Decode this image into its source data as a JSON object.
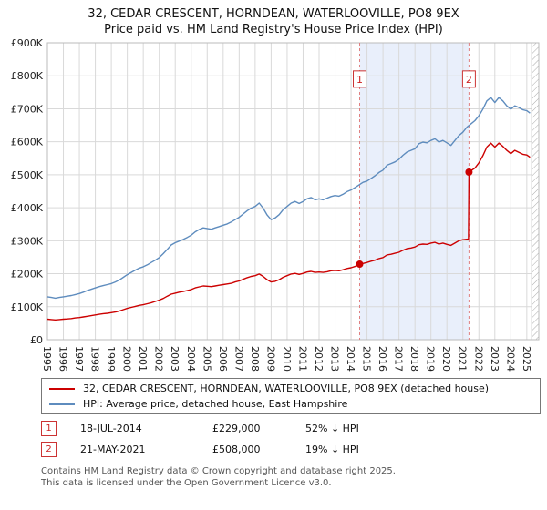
{
  "title": {
    "line1": "32, CEDAR CRESCENT, HORNDEAN, WATERLOOVILLE, PO8 9EX",
    "line2": "Price paid vs. HM Land Registry's House Price Index (HPI)"
  },
  "chart_data": {
    "type": "line",
    "title": "32, CEDAR CRESCENT, HORNDEAN, WATERLOOVILLE, PO8 9EX — Price paid vs. HM Land Registry's House Price Index (HPI)",
    "unit": "GBP thousands",
    "xlim": [
      1995,
      2025.75
    ],
    "ylim": [
      0,
      900
    ],
    "grid": true,
    "x_ticks": [
      [
        1995,
        "1995"
      ],
      [
        1996,
        "1996"
      ],
      [
        1997,
        "1997"
      ],
      [
        1998,
        "1998"
      ],
      [
        1999,
        "1999"
      ],
      [
        2000,
        "2000"
      ],
      [
        2001,
        "2001"
      ],
      [
        2002,
        "2002"
      ],
      [
        2003,
        "2003"
      ],
      [
        2004,
        "2004"
      ],
      [
        2005,
        "2005"
      ],
      [
        2006,
        "2006"
      ],
      [
        2007,
        "2007"
      ],
      [
        2008,
        "2008"
      ],
      [
        2009,
        "2009"
      ],
      [
        2010,
        "2010"
      ],
      [
        2011,
        "2011"
      ],
      [
        2012,
        "2012"
      ],
      [
        2013,
        "2013"
      ],
      [
        2014,
        "2014"
      ],
      [
        2015,
        "2015"
      ],
      [
        2016,
        "2016"
      ],
      [
        2017,
        "2017"
      ],
      [
        2018,
        "2018"
      ],
      [
        2019,
        "2019"
      ],
      [
        2020,
        "2020"
      ],
      [
        2021,
        "2021"
      ],
      [
        2022,
        "2022"
      ],
      [
        2023,
        "2023"
      ],
      [
        2024,
        "2024"
      ],
      [
        2025,
        "2025"
      ]
    ],
    "y_ticks": [
      [
        0,
        "£0"
      ],
      [
        100,
        "£100K"
      ],
      [
        200,
        "£200K"
      ],
      [
        300,
        "£300K"
      ],
      [
        400,
        "£400K"
      ],
      [
        500,
        "£500K"
      ],
      [
        600,
        "£600K"
      ],
      [
        700,
        "£700K"
      ],
      [
        800,
        "£800K"
      ],
      [
        900,
        "£900K"
      ]
    ],
    "shaded_region": {
      "from": 2014.54,
      "to": 2021.38,
      "color": "#e9effb"
    },
    "hatch_region": {
      "from": 2025.3,
      "to": 2025.75
    },
    "marker_label_y": 790,
    "sale_line_color": "#e08080",
    "sales": [
      {
        "label": "1",
        "x": 2014.54,
        "y": 229,
        "date": "18-JUL-2014",
        "price": "£229,000",
        "vs_hpi": "52% ↓ HPI"
      },
      {
        "label": "2",
        "x": 2021.38,
        "y": 508,
        "date": "21-MAY-2021",
        "price": "£508,000",
        "vs_hpi": "19% ↓ HPI"
      }
    ],
    "series": [
      {
        "name": "32, CEDAR CRESCENT, HORNDEAN, WATERLOOVILLE, PO8 9EX (detached house)",
        "color": "#cc0000",
        "points": [
          [
            1995,
            62
          ],
          [
            1995.25,
            61
          ],
          [
            1995.5,
            60
          ],
          [
            1995.75,
            61
          ],
          [
            1996,
            62
          ],
          [
            1996.25,
            63
          ],
          [
            1996.5,
            64
          ],
          [
            1996.75,
            66
          ],
          [
            1997,
            67
          ],
          [
            1997.25,
            69
          ],
          [
            1997.5,
            71
          ],
          [
            1997.75,
            73
          ],
          [
            1998,
            75
          ],
          [
            1998.25,
            77
          ],
          [
            1998.5,
            79
          ],
          [
            1998.75,
            80
          ],
          [
            1999,
            82
          ],
          [
            1999.25,
            84
          ],
          [
            1999.5,
            87
          ],
          [
            1999.75,
            91
          ],
          [
            2000,
            95
          ],
          [
            2000.25,
            98
          ],
          [
            2000.5,
            101
          ],
          [
            2000.75,
            104
          ],
          [
            2001,
            106
          ],
          [
            2001.25,
            109
          ],
          [
            2001.5,
            112
          ],
          [
            2001.75,
            116
          ],
          [
            2002,
            120
          ],
          [
            2002.25,
            125
          ],
          [
            2002.5,
            132
          ],
          [
            2002.75,
            138
          ],
          [
            2003,
            141
          ],
          [
            2003.25,
            144
          ],
          [
            2003.5,
            146
          ],
          [
            2003.75,
            149
          ],
          [
            2004,
            152
          ],
          [
            2004.25,
            157
          ],
          [
            2004.5,
            160
          ],
          [
            2004.75,
            163
          ],
          [
            2005,
            162
          ],
          [
            2005.25,
            161
          ],
          [
            2005.5,
            163
          ],
          [
            2005.75,
            165
          ],
          [
            2006,
            167
          ],
          [
            2006.25,
            169
          ],
          [
            2006.5,
            171
          ],
          [
            2006.75,
            175
          ],
          [
            2007,
            178
          ],
          [
            2007.25,
            183
          ],
          [
            2007.5,
            188
          ],
          [
            2007.75,
            192
          ],
          [
            2008,
            194
          ],
          [
            2008.25,
            199
          ],
          [
            2008.5,
            192
          ],
          [
            2008.75,
            182
          ],
          [
            2009,
            175
          ],
          [
            2009.25,
            177
          ],
          [
            2009.5,
            182
          ],
          [
            2009.75,
            189
          ],
          [
            2010,
            194
          ],
          [
            2010.25,
            199
          ],
          [
            2010.5,
            201
          ],
          [
            2010.75,
            198
          ],
          [
            2011,
            201
          ],
          [
            2011.25,
            205
          ],
          [
            2011.5,
            207
          ],
          [
            2011.75,
            204
          ],
          [
            2012,
            205
          ],
          [
            2012.25,
            204
          ],
          [
            2012.5,
            206
          ],
          [
            2012.75,
            209
          ],
          [
            2013,
            210
          ],
          [
            2013.25,
            209
          ],
          [
            2013.5,
            212
          ],
          [
            2013.75,
            216
          ],
          [
            2014,
            218
          ],
          [
            2014.25,
            222
          ],
          [
            2014.54,
            229
          ],
          [
            2014.75,
            231
          ],
          [
            2015,
            234
          ],
          [
            2015.25,
            238
          ],
          [
            2015.5,
            241
          ],
          [
            2015.75,
            246
          ],
          [
            2016,
            249
          ],
          [
            2016.25,
            257
          ],
          [
            2016.5,
            259
          ],
          [
            2016.75,
            262
          ],
          [
            2017,
            265
          ],
          [
            2017.25,
            271
          ],
          [
            2017.5,
            276
          ],
          [
            2017.75,
            278
          ],
          [
            2018,
            281
          ],
          [
            2018.25,
            288
          ],
          [
            2018.5,
            290
          ],
          [
            2018.75,
            289
          ],
          [
            2019,
            293
          ],
          [
            2019.25,
            295
          ],
          [
            2019.5,
            290
          ],
          [
            2019.75,
            293
          ],
          [
            2020,
            289
          ],
          [
            2020.25,
            286
          ],
          [
            2020.5,
            293
          ],
          [
            2020.75,
            300
          ],
          [
            2021,
            303
          ],
          [
            2021.35,
            305
          ],
          [
            2021.38,
            508
          ],
          [
            2021.5,
            512
          ],
          [
            2021.75,
            520
          ],
          [
            2022,
            536
          ],
          [
            2022.25,
            558
          ],
          [
            2022.5,
            584
          ],
          [
            2022.75,
            596
          ],
          [
            2023,
            584
          ],
          [
            2023.25,
            596
          ],
          [
            2023.5,
            586
          ],
          [
            2023.75,
            574
          ],
          [
            2024,
            564
          ],
          [
            2024.25,
            574
          ],
          [
            2024.5,
            568
          ],
          [
            2024.75,
            562
          ],
          [
            2025,
            560
          ],
          [
            2025.2,
            553
          ]
        ]
      },
      {
        "name": "HPI: Average price, detached house, East Hampshire",
        "color": "#5e8cbe",
        "points": [
          [
            1995,
            130
          ],
          [
            1995.25,
            128
          ],
          [
            1995.5,
            126
          ],
          [
            1995.75,
            128
          ],
          [
            1996,
            130
          ],
          [
            1996.25,
            132
          ],
          [
            1996.5,
            134
          ],
          [
            1996.75,
            137
          ],
          [
            1997,
            140
          ],
          [
            1997.25,
            144
          ],
          [
            1997.5,
            149
          ],
          [
            1997.75,
            153
          ],
          [
            1998,
            157
          ],
          [
            1998.25,
            161
          ],
          [
            1998.5,
            164
          ],
          [
            1998.75,
            167
          ],
          [
            1999,
            170
          ],
          [
            1999.25,
            175
          ],
          [
            1999.5,
            181
          ],
          [
            1999.75,
            189
          ],
          [
            2000,
            197
          ],
          [
            2000.25,
            204
          ],
          [
            2000.5,
            211
          ],
          [
            2000.75,
            217
          ],
          [
            2001,
            221
          ],
          [
            2001.25,
            227
          ],
          [
            2001.5,
            234
          ],
          [
            2001.75,
            241
          ],
          [
            2002,
            249
          ],
          [
            2002.25,
            261
          ],
          [
            2002.5,
            274
          ],
          [
            2002.75,
            287
          ],
          [
            2003,
            294
          ],
          [
            2003.25,
            299
          ],
          [
            2003.5,
            304
          ],
          [
            2003.75,
            310
          ],
          [
            2004,
            317
          ],
          [
            2004.25,
            327
          ],
          [
            2004.5,
            334
          ],
          [
            2004.75,
            339
          ],
          [
            2005,
            337
          ],
          [
            2005.25,
            335
          ],
          [
            2005.5,
            339
          ],
          [
            2005.75,
            343
          ],
          [
            2006,
            347
          ],
          [
            2006.25,
            351
          ],
          [
            2006.5,
            357
          ],
          [
            2006.75,
            364
          ],
          [
            2007,
            371
          ],
          [
            2007.25,
            381
          ],
          [
            2007.5,
            391
          ],
          [
            2007.75,
            399
          ],
          [
            2008,
            404
          ],
          [
            2008.25,
            414
          ],
          [
            2008.5,
            399
          ],
          [
            2008.75,
            378
          ],
          [
            2009,
            364
          ],
          [
            2009.25,
            369
          ],
          [
            2009.5,
            379
          ],
          [
            2009.75,
            394
          ],
          [
            2010,
            404
          ],
          [
            2010.25,
            414
          ],
          [
            2010.5,
            419
          ],
          [
            2010.75,
            413
          ],
          [
            2011,
            419
          ],
          [
            2011.25,
            427
          ],
          [
            2011.5,
            431
          ],
          [
            2011.75,
            424
          ],
          [
            2012,
            427
          ],
          [
            2012.25,
            424
          ],
          [
            2012.5,
            429
          ],
          [
            2012.75,
            434
          ],
          [
            2013,
            437
          ],
          [
            2013.25,
            435
          ],
          [
            2013.5,
            441
          ],
          [
            2013.75,
            449
          ],
          [
            2014,
            454
          ],
          [
            2014.25,
            461
          ],
          [
            2014.5,
            469
          ],
          [
            2014.75,
            477
          ],
          [
            2015,
            481
          ],
          [
            2015.25,
            489
          ],
          [
            2015.5,
            497
          ],
          [
            2015.75,
            507
          ],
          [
            2016,
            514
          ],
          [
            2016.25,
            529
          ],
          [
            2016.5,
            534
          ],
          [
            2016.75,
            539
          ],
          [
            2017,
            547
          ],
          [
            2017.25,
            559
          ],
          [
            2017.5,
            569
          ],
          [
            2017.75,
            574
          ],
          [
            2018,
            579
          ],
          [
            2018.25,
            594
          ],
          [
            2018.5,
            599
          ],
          [
            2018.75,
            597
          ],
          [
            2019,
            604
          ],
          [
            2019.25,
            609
          ],
          [
            2019.5,
            599
          ],
          [
            2019.75,
            604
          ],
          [
            2020,
            597
          ],
          [
            2020.25,
            589
          ],
          [
            2020.5,
            604
          ],
          [
            2020.75,
            619
          ],
          [
            2021,
            629
          ],
          [
            2021.25,
            644
          ],
          [
            2021.5,
            654
          ],
          [
            2021.75,
            664
          ],
          [
            2022,
            679
          ],
          [
            2022.25,
            699
          ],
          [
            2022.5,
            724
          ],
          [
            2022.75,
            734
          ],
          [
            2023,
            719
          ],
          [
            2023.25,
            734
          ],
          [
            2023.5,
            724
          ],
          [
            2023.75,
            709
          ],
          [
            2024,
            699
          ],
          [
            2024.25,
            709
          ],
          [
            2024.5,
            704
          ],
          [
            2024.75,
            697
          ],
          [
            2025,
            694
          ],
          [
            2025.2,
            687
          ]
        ]
      }
    ]
  },
  "legend": {
    "items": [
      {
        "label": "32, CEDAR CRESCENT, HORNDEAN, WATERLOOVILLE, PO8 9EX (detached house)",
        "color": "#cc0000"
      },
      {
        "label": "HPI: Average price, detached house, East Hampshire",
        "color": "#5e8cbe"
      }
    ]
  },
  "annotations": [
    {
      "num": "1",
      "date": "18-JUL-2014",
      "price": "£229,000",
      "delta": "52% ↓ HPI"
    },
    {
      "num": "2",
      "date": "21-MAY-2021",
      "price": "£508,000",
      "delta": "19% ↓ HPI"
    }
  ],
  "footer": {
    "line1": "Contains HM Land Registry data © Crown copyright and database right 2025.",
    "line2": "This data is licensed under the Open Government Licence v3.0."
  }
}
